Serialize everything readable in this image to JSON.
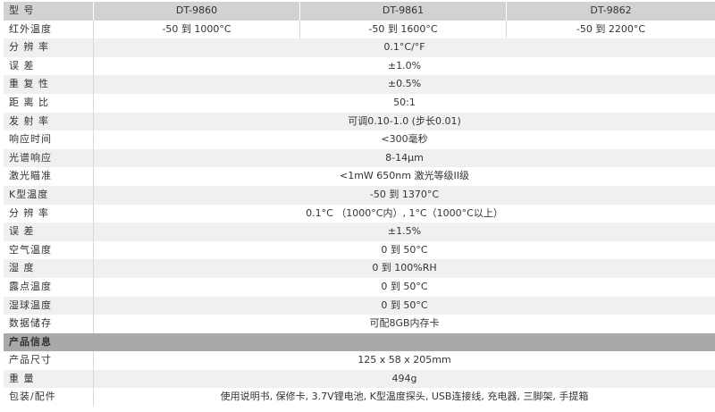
{
  "colors": {
    "header_bg": "#d2d2d2",
    "section_bg": "#a9a9a9",
    "alt_row_bg": "#f0f0f0",
    "text": "#333333"
  },
  "rows": [
    {
      "kind": "header",
      "label": "型    号",
      "values": [
        "DT-9860",
        "DT-9861",
        "DT-9862"
      ]
    },
    {
      "kind": "white",
      "label": "红外温度",
      "values": [
        "-50 到 1000°C",
        "-50 到 1600°C",
        "-50 到 2200°C"
      ]
    },
    {
      "kind": "light",
      "label": "分 辨 率",
      "values": [
        "0.1°C/°F"
      ]
    },
    {
      "kind": "white",
      "label": "误    差",
      "values": [
        "±1.0%"
      ]
    },
    {
      "kind": "light",
      "label": "重 复 性",
      "values": [
        "±0.5%"
      ]
    },
    {
      "kind": "white",
      "label": "距 离 比",
      "values": [
        "50:1"
      ]
    },
    {
      "kind": "light",
      "label": "发 射 率",
      "values": [
        "可调0.10-1.0 (步长0.01)"
      ]
    },
    {
      "kind": "white",
      "label": "响应时间",
      "values": [
        "<300毫秒"
      ]
    },
    {
      "kind": "light",
      "label": "光谱响应",
      "values": [
        "8-14μm"
      ]
    },
    {
      "kind": "white",
      "label": "激光瞄准",
      "values": [
        "<1mW 650nm 激光等级II级"
      ]
    },
    {
      "kind": "light",
      "label": "K型温度",
      "values": [
        "-50 到 1370°C"
      ]
    },
    {
      "kind": "white",
      "label": "分 辨 率",
      "values": [
        "0.1°C （1000°C内）, 1°C（1000°C以上）"
      ]
    },
    {
      "kind": "light",
      "label": "误    差",
      "values": [
        "±1.5%"
      ]
    },
    {
      "kind": "white",
      "label": "空气温度",
      "values": [
        "0 到 50°C"
      ]
    },
    {
      "kind": "light",
      "label": "湿    度",
      "values": [
        "0 到 100%RH"
      ]
    },
    {
      "kind": "white",
      "label": "露点温度",
      "values": [
        "0 到 50°C"
      ]
    },
    {
      "kind": "light",
      "label": "湿球温度",
      "values": [
        "0 到 50°C"
      ]
    },
    {
      "kind": "white",
      "label": "数据储存",
      "values": [
        "可配8GB内存卡"
      ]
    },
    {
      "kind": "section",
      "label": "产品信息",
      "values": [
        ""
      ]
    },
    {
      "kind": "white",
      "label": "产品尺寸",
      "values": [
        "125 x 58 x 205mm"
      ]
    },
    {
      "kind": "light",
      "label": "重    量",
      "values": [
        "494g"
      ]
    },
    {
      "kind": "white",
      "label": "包装/配件",
      "values": [
        "使用说明书, 保修卡, 3.7V锂电池, K型温度探头, USB连接线, 充电器, 三脚架, 手提箱"
      ]
    }
  ]
}
